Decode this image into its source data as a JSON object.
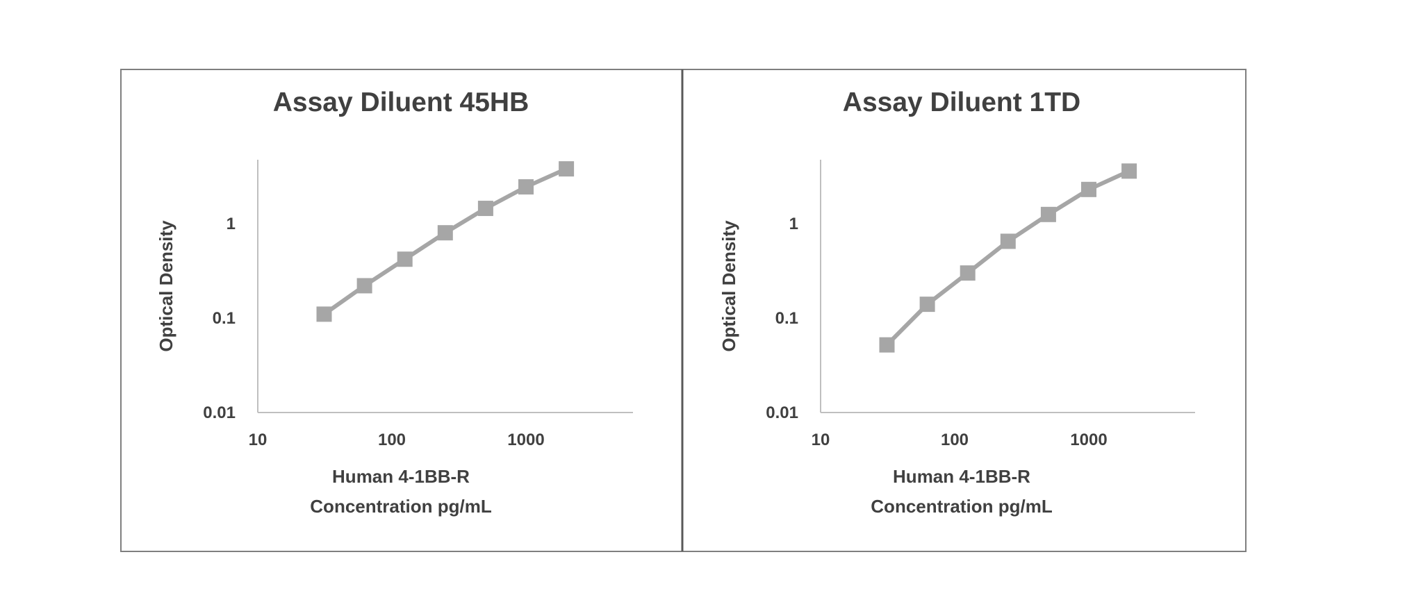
{
  "chart_data": [
    {
      "type": "line",
      "title": "Assay Diluent 45HB",
      "xlabel": [
        "Human 4-1BB-R",
        "Concentration pg/mL"
      ],
      "ylabel": "Optical Density",
      "x_scale": "log",
      "y_scale": "log",
      "xlim": [
        10,
        6000
      ],
      "ylim": [
        0.01,
        6
      ],
      "x_ticks": [
        "10",
        "100",
        "1000"
      ],
      "y_ticks": [
        "0.01",
        "0.1",
        "1"
      ],
      "grid": false,
      "series": [
        {
          "color": "#a6a6a6",
          "marker": "square",
          "x": [
            31.25,
            62.5,
            125,
            250,
            500,
            1000,
            2000
          ],
          "y": [
            0.11,
            0.22,
            0.42,
            0.8,
            1.45,
            2.45,
            3.8
          ]
        }
      ]
    },
    {
      "type": "line",
      "title": "Assay Diluent 1TD",
      "xlabel": [
        "Human 4-1BB-R",
        "Concentration pg/mL"
      ],
      "ylabel": "Optical Density",
      "x_scale": "log",
      "y_scale": "log",
      "xlim": [
        10,
        6000
      ],
      "ylim": [
        0.01,
        6
      ],
      "x_ticks": [
        "10",
        "100",
        "1000"
      ],
      "y_ticks": [
        "0.01",
        "0.1",
        "1"
      ],
      "grid": false,
      "series": [
        {
          "color": "#a6a6a6",
          "marker": "square",
          "x": [
            31.25,
            62.5,
            125,
            250,
            500,
            1000,
            2000
          ],
          "y": [
            0.052,
            0.14,
            0.3,
            0.65,
            1.25,
            2.3,
            3.6
          ]
        }
      ]
    }
  ],
  "colors": {
    "axis": "#bfbfbf",
    "text": "#404040",
    "frame": "#7f7f7f",
    "divider": "#595959"
  }
}
